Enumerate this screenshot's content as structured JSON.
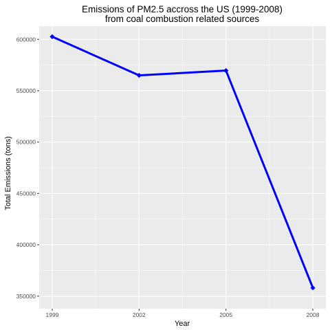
{
  "chart_data": {
    "type": "line",
    "title_lines": [
      "Emissions of PM2.5 accross the US (1999-2008)",
      "from coal combustion related sources"
    ],
    "xlabel": "Year",
    "ylabel": "Total Emissions (tons)",
    "x": [
      1999,
      2002,
      2005,
      2008
    ],
    "x_tick_labels": [
      "1999",
      "2002",
      "2005",
      "2008"
    ],
    "series": [
      {
        "values": [
          602624,
          564940,
          569655,
          358084
        ],
        "color": "#0000ff"
      }
    ],
    "y_ticks": [
      350000,
      400000,
      450000,
      500000,
      550000,
      600000
    ],
    "y_tick_labels": [
      "350000",
      "400000",
      "450000",
      "500000",
      "550000",
      "600000"
    ],
    "xlim": [
      1998.55,
      2008.45
    ],
    "ylim": [
      337800,
      612900
    ],
    "grid": true,
    "legend": "none",
    "panel_color": "#ebebeb",
    "grid_color": "#ffffff"
  }
}
